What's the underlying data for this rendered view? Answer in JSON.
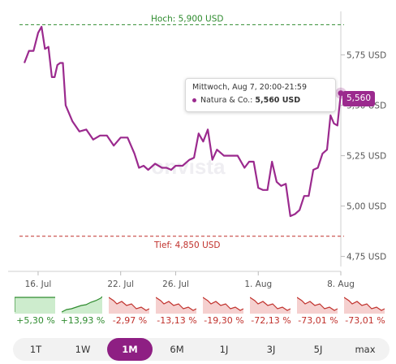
{
  "chart_data": {
    "type": "line",
    "y_unit": "USD",
    "ylim": [
      4.7,
      5.95
    ],
    "y_ticks": [
      {
        "value": 4.75,
        "label": "4,75 USD"
      },
      {
        "value": 5.0,
        "label": "5,00 USD"
      },
      {
        "value": 5.25,
        "label": "5,25 USD"
      },
      {
        "value": 5.5,
        "label": "5,50 USD"
      },
      {
        "value": 5.75,
        "label": "5,75 USD"
      }
    ],
    "x_ticks": [
      {
        "date": "2024-07-16",
        "label": "16. Jul"
      },
      {
        "date": "2024-07-22",
        "label": "22. Jul"
      },
      {
        "date": "2024-07-26",
        "label": "26. Jul"
      },
      {
        "date": "2024-08-01",
        "label": "1. Aug"
      },
      {
        "date": "2024-08-07",
        "label": "8. Aug"
      }
    ],
    "x_range": [
      "2024-07-15",
      "2024-08-07"
    ],
    "series": [
      {
        "name": "Natura & Co.",
        "color": "#9b2a8e",
        "points": [
          [
            "2024-07-15",
            5.71
          ],
          [
            "2024-07-15",
            5.77
          ],
          [
            "2024-07-15",
            5.77
          ],
          [
            "2024-07-16",
            5.86
          ],
          [
            "2024-07-16",
            5.89
          ],
          [
            "2024-07-16",
            5.78
          ],
          [
            "2024-07-16",
            5.79
          ],
          [
            "2024-07-17",
            5.64
          ],
          [
            "2024-07-17",
            5.64
          ],
          [
            "2024-07-17",
            5.7
          ],
          [
            "2024-07-17",
            5.71
          ],
          [
            "2024-07-17",
            5.71
          ],
          [
            "2024-07-18",
            5.5
          ],
          [
            "2024-07-18",
            5.42
          ],
          [
            "2024-07-19",
            5.37
          ],
          [
            "2024-07-19",
            5.38
          ],
          [
            "2024-07-20",
            5.33
          ],
          [
            "2024-07-20",
            5.35
          ],
          [
            "2024-07-21",
            5.35
          ],
          [
            "2024-07-21",
            5.3
          ],
          [
            "2024-07-22",
            5.34
          ],
          [
            "2024-07-22",
            5.34
          ],
          [
            "2024-07-23",
            5.26
          ],
          [
            "2024-07-23",
            5.19
          ],
          [
            "2024-07-23",
            5.2
          ],
          [
            "2024-07-24",
            5.18
          ],
          [
            "2024-07-24",
            5.21
          ],
          [
            "2024-07-25",
            5.19
          ],
          [
            "2024-07-25",
            5.19
          ],
          [
            "2024-07-25",
            5.18
          ],
          [
            "2024-07-26",
            5.2
          ],
          [
            "2024-07-26",
            5.2
          ],
          [
            "2024-07-27",
            5.23
          ],
          [
            "2024-07-27",
            5.24
          ],
          [
            "2024-07-27",
            5.36
          ],
          [
            "2024-07-28",
            5.32
          ],
          [
            "2024-07-28",
            5.38
          ],
          [
            "2024-07-28",
            5.23
          ],
          [
            "2024-07-29",
            5.28
          ],
          [
            "2024-07-29",
            5.25
          ],
          [
            "2024-07-30",
            5.25
          ],
          [
            "2024-07-30",
            5.25
          ],
          [
            "2024-07-31",
            5.19
          ],
          [
            "2024-07-31",
            5.22
          ],
          [
            "2024-07-31",
            5.22
          ],
          [
            "2024-08-01",
            5.09
          ],
          [
            "2024-08-01",
            5.08
          ],
          [
            "2024-08-01",
            5.08
          ],
          [
            "2024-08-02",
            5.22
          ],
          [
            "2024-08-02",
            5.12
          ],
          [
            "2024-08-02",
            5.1
          ],
          [
            "2024-08-03",
            5.11
          ],
          [
            "2024-08-03",
            4.95
          ],
          [
            "2024-08-03",
            4.96
          ],
          [
            "2024-08-04",
            4.98
          ],
          [
            "2024-08-04",
            5.05
          ],
          [
            "2024-08-04",
            5.05
          ],
          [
            "2024-08-05",
            5.18
          ],
          [
            "2024-08-05",
            5.19
          ],
          [
            "2024-08-05",
            5.26
          ],
          [
            "2024-08-06",
            5.28
          ],
          [
            "2024-08-06",
            5.45
          ],
          [
            "2024-08-06",
            5.41
          ],
          [
            "2024-08-06",
            5.4
          ],
          [
            "2024-08-07",
            5.56
          ]
        ]
      }
    ],
    "high": {
      "value": 5.9,
      "label": "Hoch: 5,900 USD"
    },
    "low": {
      "value": 4.85,
      "label": "Tief: 4,850 USD"
    },
    "grid": false,
    "legend": "none"
  },
  "tooltip": {
    "title": "Mittwoch, Aug 7, 20:00-21:59",
    "series_label": "Natura & Co.:",
    "value": "5,560 USD"
  },
  "price_badge": "5,560",
  "watermark": "onvista",
  "performance": [
    {
      "label": "1T",
      "value": "+5,30 %",
      "trend": "up"
    },
    {
      "label": "1W",
      "value": "+13,93 %",
      "trend": "up"
    },
    {
      "label": "1M",
      "value": "-2,97 %",
      "trend": "down"
    },
    {
      "label": "6M",
      "value": "-13,13 %",
      "trend": "down"
    },
    {
      "label": "1J",
      "value": "-19,30 %",
      "trend": "down"
    },
    {
      "label": "3J",
      "value": "-72,13 %",
      "trend": "down"
    },
    {
      "label": "5J",
      "value": "-73,01 %",
      "trend": "down"
    },
    {
      "label": "max",
      "value": "-73,01 %",
      "trend": "down"
    }
  ],
  "range_buttons": [
    "1T",
    "1W",
    "1M",
    "6M",
    "1J",
    "3J",
    "5J",
    "max"
  ],
  "active_range": "1M",
  "colors": {
    "line": "#9b2a8e",
    "high": "#2e8b2e",
    "low": "#c0302b",
    "active_button": "#8e1f83"
  }
}
